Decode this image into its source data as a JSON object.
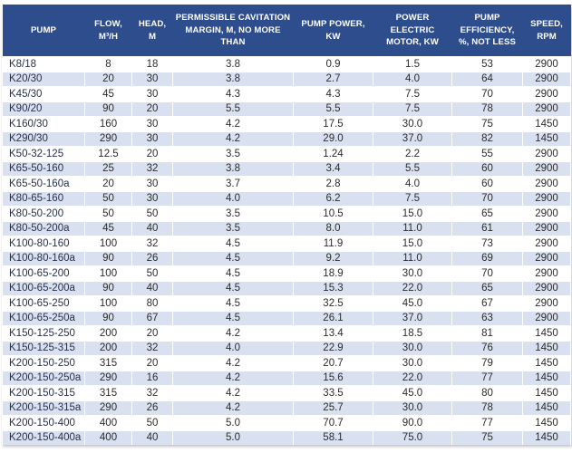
{
  "colors": {
    "header_bg": "#2E4D8C",
    "header_text": "#FFFFFF",
    "stripe_bg": "#D9E0F0",
    "body_text": "#2B2B2B",
    "pump_name_text": "#26304A"
  },
  "table": {
    "columns": [
      "PUMP",
      "FLOW, M³/H",
      "HEAD, M",
      "PERMISSIBLE CAVITATION MARGIN, M, NO MORE THAN",
      "PUMP POWER, KW",
      "POWER ELECTRIC MOTOR, KW",
      "PUMP EFFICIENCY, %, NOT LESS",
      "SPEED, RPM"
    ],
    "rows": [
      [
        "K8/18",
        "8",
        "18",
        "3.8",
        "0.9",
        "1.5",
        "53",
        "2900"
      ],
      [
        "K20/30",
        "20",
        "30",
        "3.8",
        "2.7",
        "4.0",
        "64",
        "2900"
      ],
      [
        "K45/30",
        "45",
        "30",
        "4.3",
        "4.3",
        "7.5",
        "70",
        "2900"
      ],
      [
        "K90/20",
        "90",
        "20",
        "5.5",
        "5.5",
        "7.5",
        "78",
        "2900"
      ],
      [
        "K160/30",
        "160",
        "30",
        "4.2",
        "17.5",
        "30.0",
        "75",
        "1450"
      ],
      [
        "K290/30",
        "290",
        "30",
        "4.2",
        "29.0",
        "37.0",
        "82",
        "1450"
      ],
      [
        "K50-32-125",
        "12.5",
        "20",
        "3.5",
        "1.24",
        "2.2",
        "55",
        "2900"
      ],
      [
        "K65-50-160",
        "25",
        "32",
        "3.8",
        "3.4",
        "5.5",
        "60",
        "2900"
      ],
      [
        "K65-50-160a",
        "20",
        "30",
        "3.7",
        "2.8",
        "4.0",
        "60",
        "2900"
      ],
      [
        "K80-65-160",
        "50",
        "30",
        "4.0",
        "6.2",
        "7.5",
        "70",
        "2900"
      ],
      [
        "K80-50-200",
        "50",
        "50",
        "3.5",
        "10.5",
        "15.0",
        "65",
        "2900"
      ],
      [
        "K80-50-200a",
        "45",
        "40",
        "3.5",
        "8.0",
        "11.0",
        "61",
        "2900"
      ],
      [
        "K100-80-160",
        "100",
        "32",
        "4.5",
        "11.9",
        "15.0",
        "73",
        "2900"
      ],
      [
        "K100-80-160a",
        "90",
        "26",
        "4.5",
        "9.2",
        "11.0",
        "69",
        "2900"
      ],
      [
        "K100-65-200",
        "100",
        "50",
        "4.5",
        "18.9",
        "30.0",
        "70",
        "2900"
      ],
      [
        "K100-65-200a",
        "90",
        "40",
        "4.5",
        "15.3",
        "22.0",
        "65",
        "2900"
      ],
      [
        "K100-65-250",
        "100",
        "80",
        "4.5",
        "32.5",
        "45.0",
        "67",
        "2900"
      ],
      [
        "K100-65-250a",
        "90",
        "67",
        "4.5",
        "26.1",
        "37.0",
        "63",
        "2900"
      ],
      [
        "K150-125-250",
        "200",
        "20",
        "4.2",
        "13.4",
        "18.5",
        "81",
        "1450"
      ],
      [
        "K150-125-315",
        "200",
        "32",
        "4.0",
        "22.9",
        "30.0",
        "76",
        "1450"
      ],
      [
        "K200-150-250",
        "315",
        "20",
        "4.2",
        "20.7",
        "30.0",
        "79",
        "1450"
      ],
      [
        "K200-150-250a",
        "290",
        "16",
        "4.2",
        "15.6",
        "22.0",
        "77",
        "1450"
      ],
      [
        "K200-150-315",
        "315",
        "32",
        "4.2",
        "33.5",
        "45.0",
        "80",
        "1450"
      ],
      [
        "K200-150-315a",
        "290",
        "26",
        "4.2",
        "25.7",
        "30.0",
        "78",
        "1450"
      ],
      [
        "K200-150-400",
        "400",
        "50",
        "5.0",
        "70.7",
        "90.0",
        "77",
        "1450"
      ],
      [
        "K200-150-400a",
        "400",
        "40",
        "5.0",
        "58.1",
        "75.0",
        "75",
        "1450"
      ]
    ]
  },
  "chart_data": {
    "type": "table",
    "title": "Pump specifications table",
    "columns": [
      "PUMP",
      "FLOW, M³/H",
      "HEAD, M",
      "PERMISSIBLE CAVITATION MARGIN, M, NO MORE THAN",
      "PUMP POWER, KW",
      "POWER ELECTRIC MOTOR, KW",
      "PUMP EFFICIENCY, %, NOT LESS",
      "SPEED, RPM"
    ],
    "rows": [
      [
        "K8/18",
        8,
        18,
        3.8,
        0.9,
        1.5,
        53,
        2900
      ],
      [
        "K20/30",
        20,
        30,
        3.8,
        2.7,
        4.0,
        64,
        2900
      ],
      [
        "K45/30",
        45,
        30,
        4.3,
        4.3,
        7.5,
        70,
        2900
      ],
      [
        "K90/20",
        90,
        20,
        5.5,
        5.5,
        7.5,
        78,
        2900
      ],
      [
        "K160/30",
        160,
        30,
        4.2,
        17.5,
        30.0,
        75,
        1450
      ],
      [
        "K290/30",
        290,
        30,
        4.2,
        29.0,
        37.0,
        82,
        1450
      ],
      [
        "K50-32-125",
        12.5,
        20,
        3.5,
        1.24,
        2.2,
        55,
        2900
      ],
      [
        "K65-50-160",
        25,
        32,
        3.8,
        3.4,
        5.5,
        60,
        2900
      ],
      [
        "K65-50-160a",
        20,
        30,
        3.7,
        2.8,
        4.0,
        60,
        2900
      ],
      [
        "K80-65-160",
        50,
        30,
        4.0,
        6.2,
        7.5,
        70,
        2900
      ],
      [
        "K80-50-200",
        50,
        50,
        3.5,
        10.5,
        15.0,
        65,
        2900
      ],
      [
        "K80-50-200a",
        45,
        40,
        3.5,
        8.0,
        11.0,
        61,
        2900
      ],
      [
        "K100-80-160",
        100,
        32,
        4.5,
        11.9,
        15.0,
        73,
        2900
      ],
      [
        "K100-80-160a",
        90,
        26,
        4.5,
        9.2,
        11.0,
        69,
        2900
      ],
      [
        "K100-65-200",
        100,
        50,
        4.5,
        18.9,
        30.0,
        70,
        2900
      ],
      [
        "K100-65-200a",
        90,
        40,
        4.5,
        15.3,
        22.0,
        65,
        2900
      ],
      [
        "K100-65-250",
        100,
        80,
        4.5,
        32.5,
        45.0,
        67,
        2900
      ],
      [
        "K100-65-250a",
        90,
        67,
        4.5,
        26.1,
        37.0,
        63,
        2900
      ],
      [
        "K150-125-250",
        200,
        20,
        4.2,
        13.4,
        18.5,
        81,
        1450
      ],
      [
        "K150-125-315",
        200,
        32,
        4.0,
        22.9,
        30.0,
        76,
        1450
      ],
      [
        "K200-150-250",
        315,
        20,
        4.2,
        20.7,
        30.0,
        79,
        1450
      ],
      [
        "K200-150-250a",
        290,
        16,
        4.2,
        15.6,
        22.0,
        77,
        1450
      ],
      [
        "K200-150-315",
        315,
        32,
        4.2,
        33.5,
        45.0,
        80,
        1450
      ],
      [
        "K200-150-315a",
        290,
        26,
        4.2,
        25.7,
        30.0,
        78,
        1450
      ],
      [
        "K200-150-400",
        400,
        50,
        5.0,
        70.7,
        90.0,
        77,
        1450
      ],
      [
        "K200-150-400a",
        400,
        40,
        5.0,
        58.1,
        75.0,
        75,
        1450
      ]
    ]
  }
}
